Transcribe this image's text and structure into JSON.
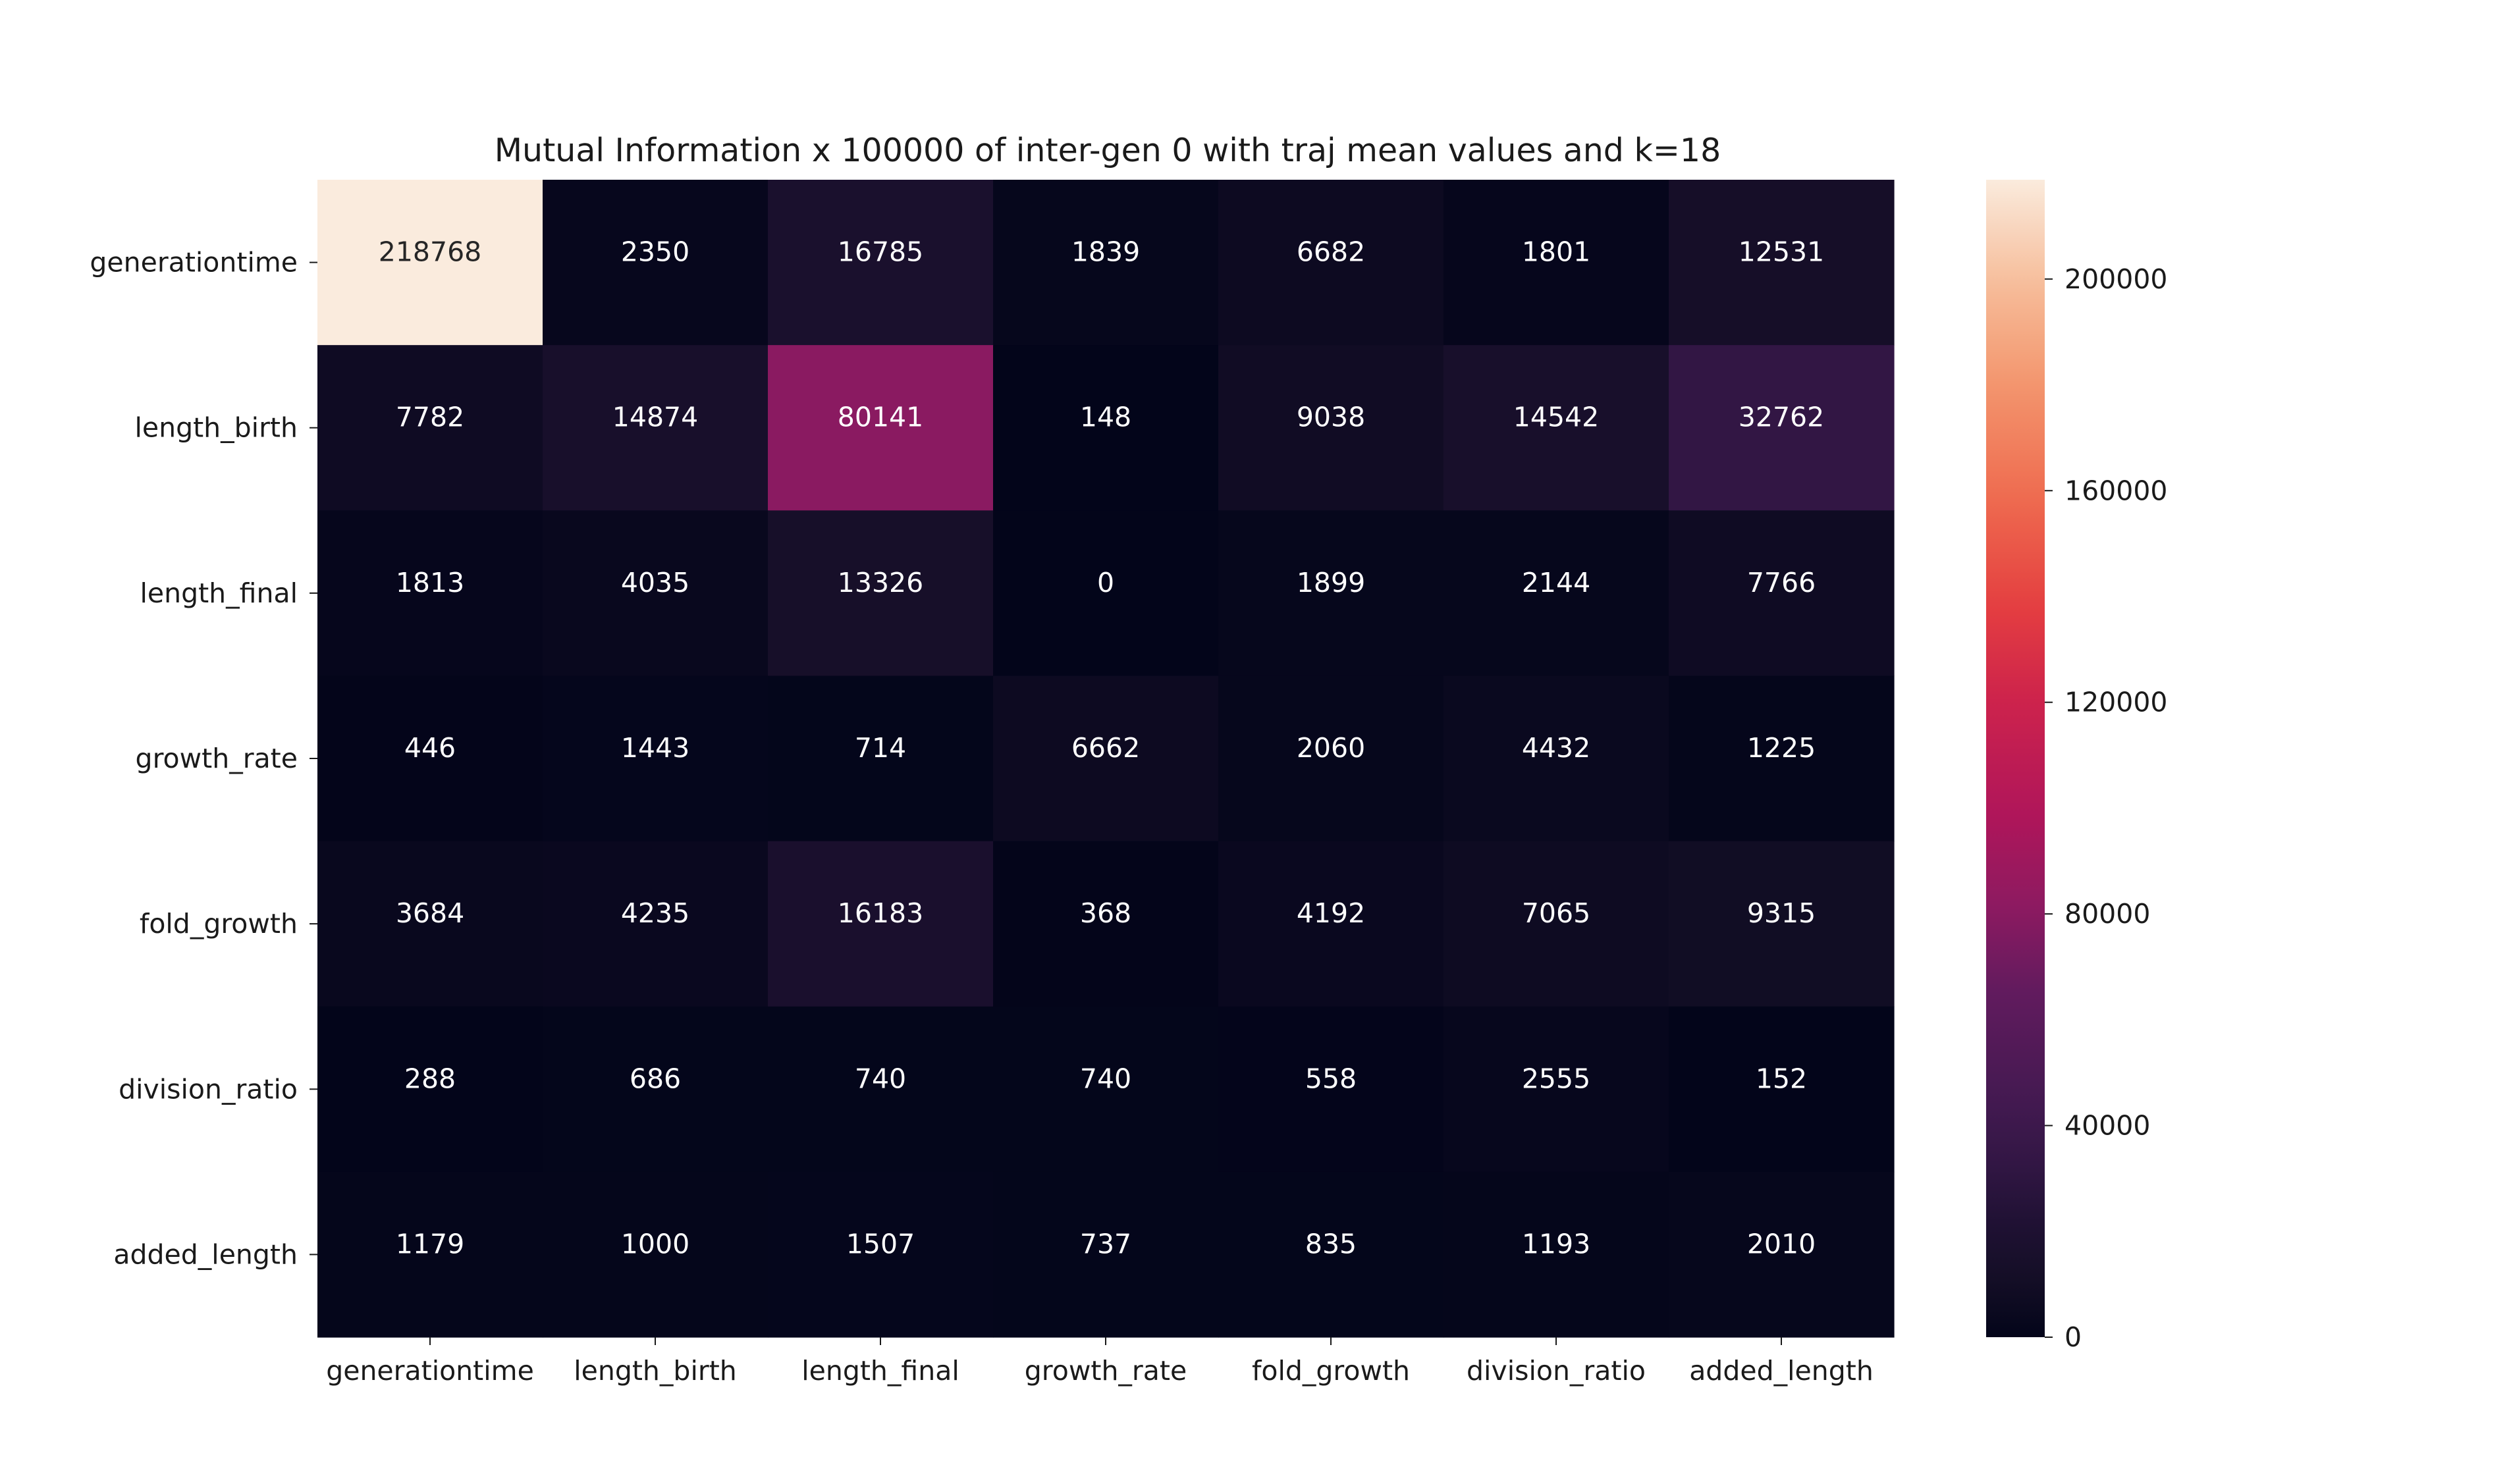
{
  "chart_data": {
    "type": "heatmap",
    "title": "Mutual Information x 100000 of inter-gen 0 with traj mean values and k=18",
    "xlabel": "",
    "ylabel": "",
    "x_categories": [
      "generationtime",
      "length_birth",
      "length_final",
      "growth_rate",
      "fold_growth",
      "division_ratio",
      "added_length"
    ],
    "y_categories": [
      "generationtime",
      "length_birth",
      "length_final",
      "growth_rate",
      "fold_growth",
      "division_ratio",
      "added_length"
    ],
    "values": [
      [
        218768,
        2350,
        16785,
        1839,
        6682,
        1801,
        12531
      ],
      [
        7782,
        14874,
        80141,
        148,
        9038,
        14542,
        32762
      ],
      [
        1813,
        4035,
        13326,
        0,
        1899,
        2144,
        7766
      ],
      [
        446,
        1443,
        714,
        6662,
        2060,
        4432,
        1225
      ],
      [
        3684,
        4235,
        16183,
        368,
        4192,
        7065,
        9315
      ],
      [
        288,
        686,
        740,
        740,
        558,
        2555,
        152
      ],
      [
        1179,
        1000,
        1507,
        737,
        835,
        1193,
        2010
      ]
    ],
    "colorbar": {
      "colormap": "rocket",
      "range": [
        0,
        218768
      ],
      "ticks": [
        0,
        40000,
        80000,
        120000,
        160000,
        200000
      ]
    },
    "annotations": true,
    "grid": false,
    "legend": "colorbar-right"
  }
}
